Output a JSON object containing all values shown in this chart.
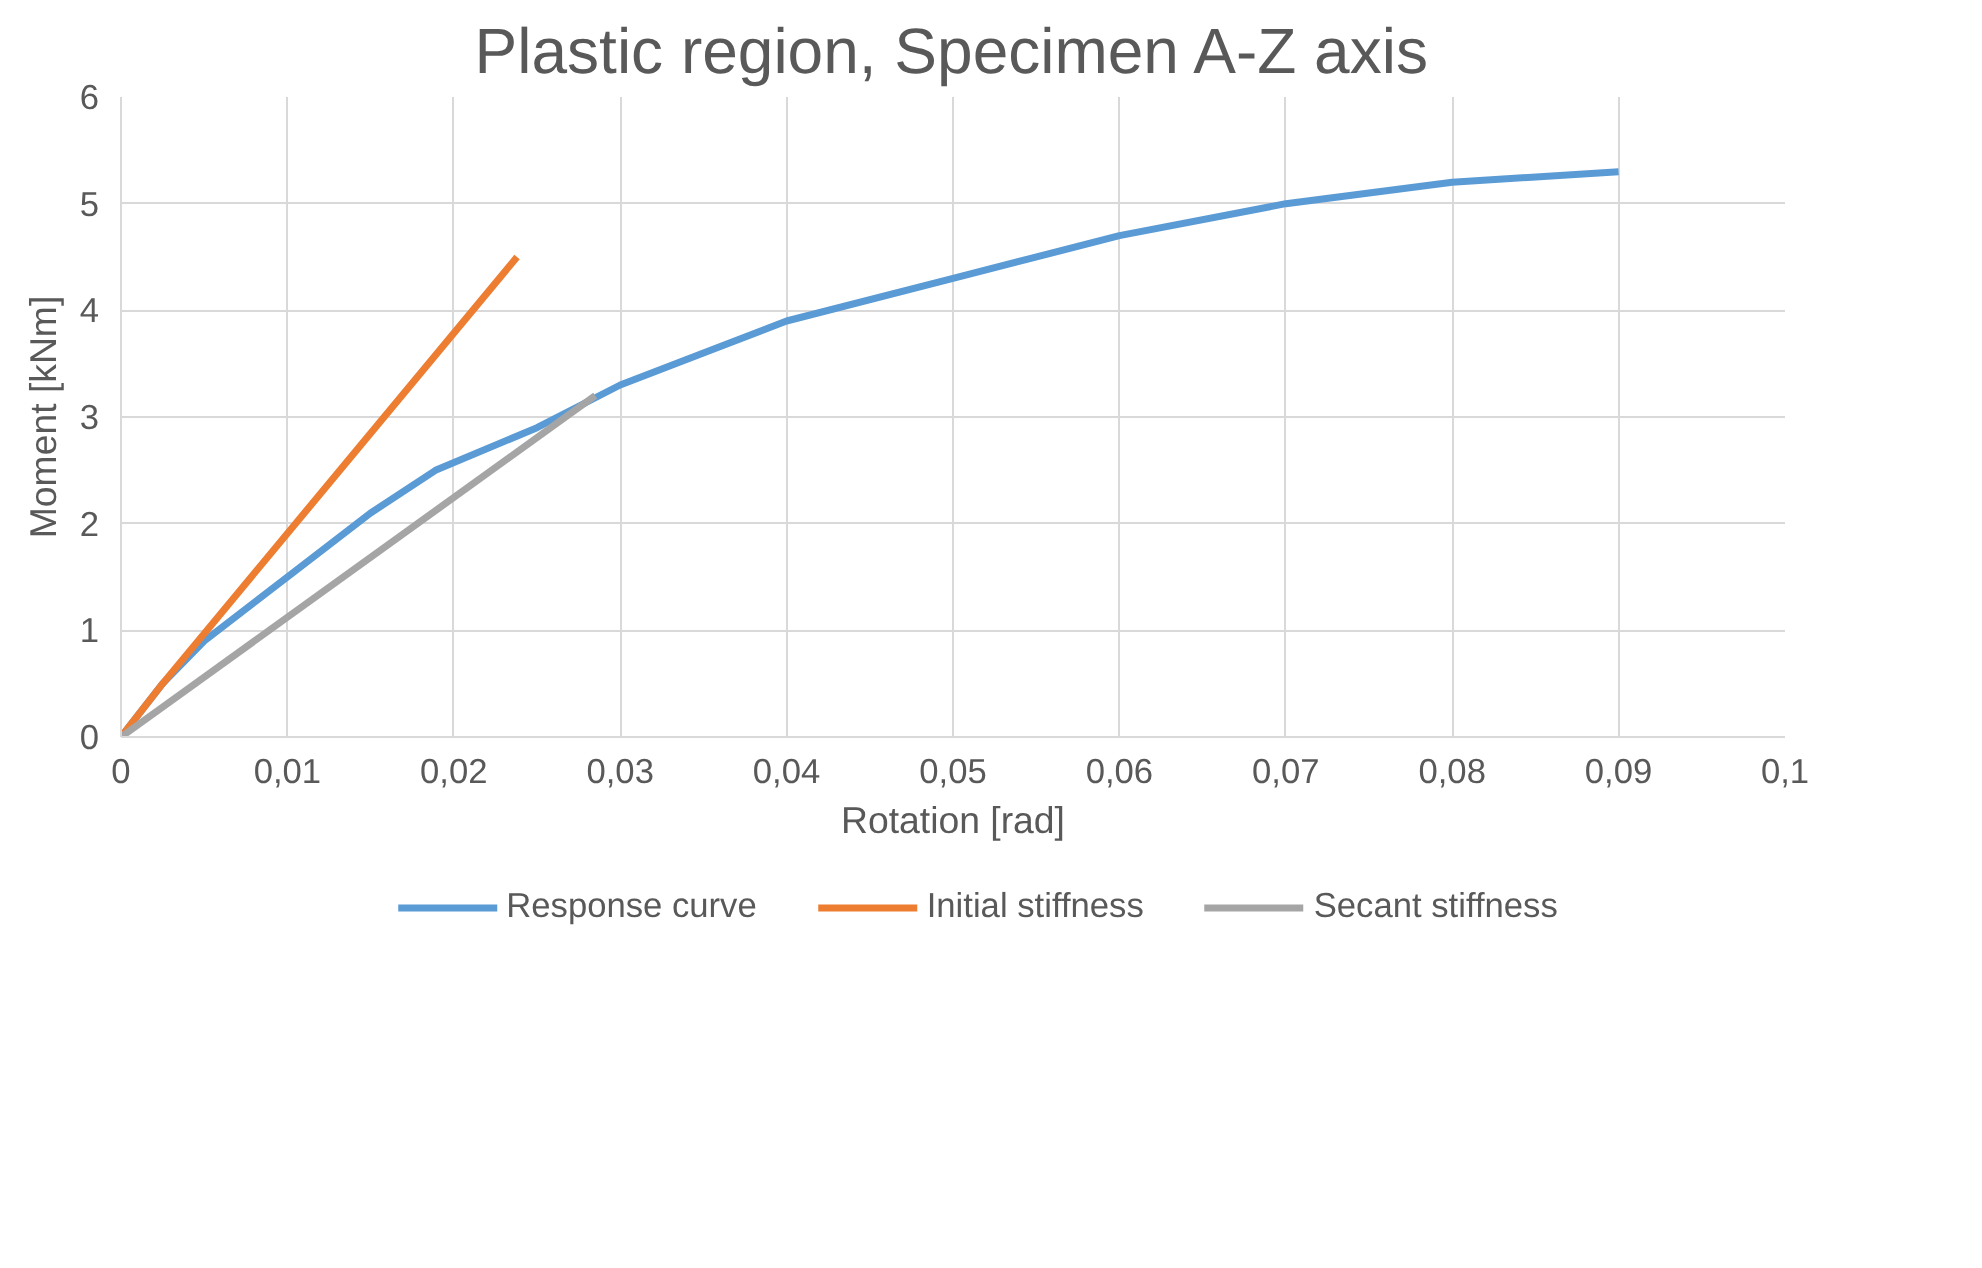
{
  "chart_data": {
    "type": "line",
    "title": "Plastic region, Specimen A-Z axis",
    "xlabel": "Rotation [rad]",
    "ylabel": "Moment [kNm]",
    "xlim": [
      0,
      0.1
    ],
    "ylim": [
      0,
      6
    ],
    "xticks": [
      {
        "value": 0,
        "label": "0"
      },
      {
        "value": 0.01,
        "label": "0,01"
      },
      {
        "value": 0.02,
        "label": "0,02"
      },
      {
        "value": 0.03,
        "label": "0,03"
      },
      {
        "value": 0.04,
        "label": "0,04"
      },
      {
        "value": 0.05,
        "label": "0,05"
      },
      {
        "value": 0.06,
        "label": "0,06"
      },
      {
        "value": 0.07,
        "label": "0,07"
      },
      {
        "value": 0.08,
        "label": "0,08"
      },
      {
        "value": 0.09,
        "label": "0,09"
      },
      {
        "value": 0.1,
        "label": "0,1"
      }
    ],
    "yticks": [
      0,
      1,
      2,
      3,
      4,
      5,
      6
    ],
    "grid": true,
    "legend": "bottom",
    "marker": "none",
    "line_style": "solid",
    "series": [
      {
        "name": "Response curve",
        "color": "#5b9bd5",
        "x": [
          0,
          0.0025,
          0.005,
          0.01,
          0.015,
          0.0189,
          0.025,
          0.03,
          0.035,
          0.04,
          0.05,
          0.06,
          0.07,
          0.075,
          0.08,
          0.09
        ],
        "values": [
          0,
          0.5,
          0.9,
          1.5,
          2.1,
          2.5,
          2.9,
          3.3,
          3.6,
          3.9,
          4.3,
          4.7,
          5.0,
          5.1,
          5.2,
          5.3
        ]
      },
      {
        "name": "Initial stiffness",
        "color": "#ed7d31",
        "x": [
          0,
          0.0025,
          0.0238
        ],
        "values": [
          0,
          0.5,
          4.5
        ]
      },
      {
        "name": "Secant stiffness",
        "color": "#a5a5a5",
        "x": [
          0,
          0.0285
        ],
        "values": [
          0,
          3.2
        ]
      }
    ]
  }
}
